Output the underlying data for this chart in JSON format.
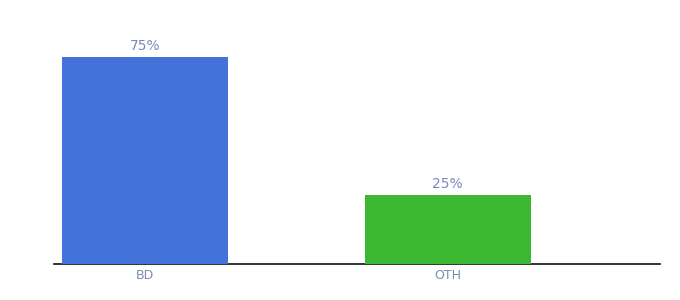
{
  "categories": [
    "BD",
    "OTH"
  ],
  "values": [
    75,
    25
  ],
  "bar_colors": [
    "#4472db",
    "#3cb832"
  ],
  "value_labels": [
    "75%",
    "25%"
  ],
  "background_color": "#ffffff",
  "text_color": "#7b8ab8",
  "label_fontsize": 10,
  "tick_fontsize": 9,
  "ylim": [
    0,
    88
  ],
  "bar_width": 0.55,
  "xlim": [
    -0.3,
    1.7
  ],
  "spine_color": "#111111"
}
